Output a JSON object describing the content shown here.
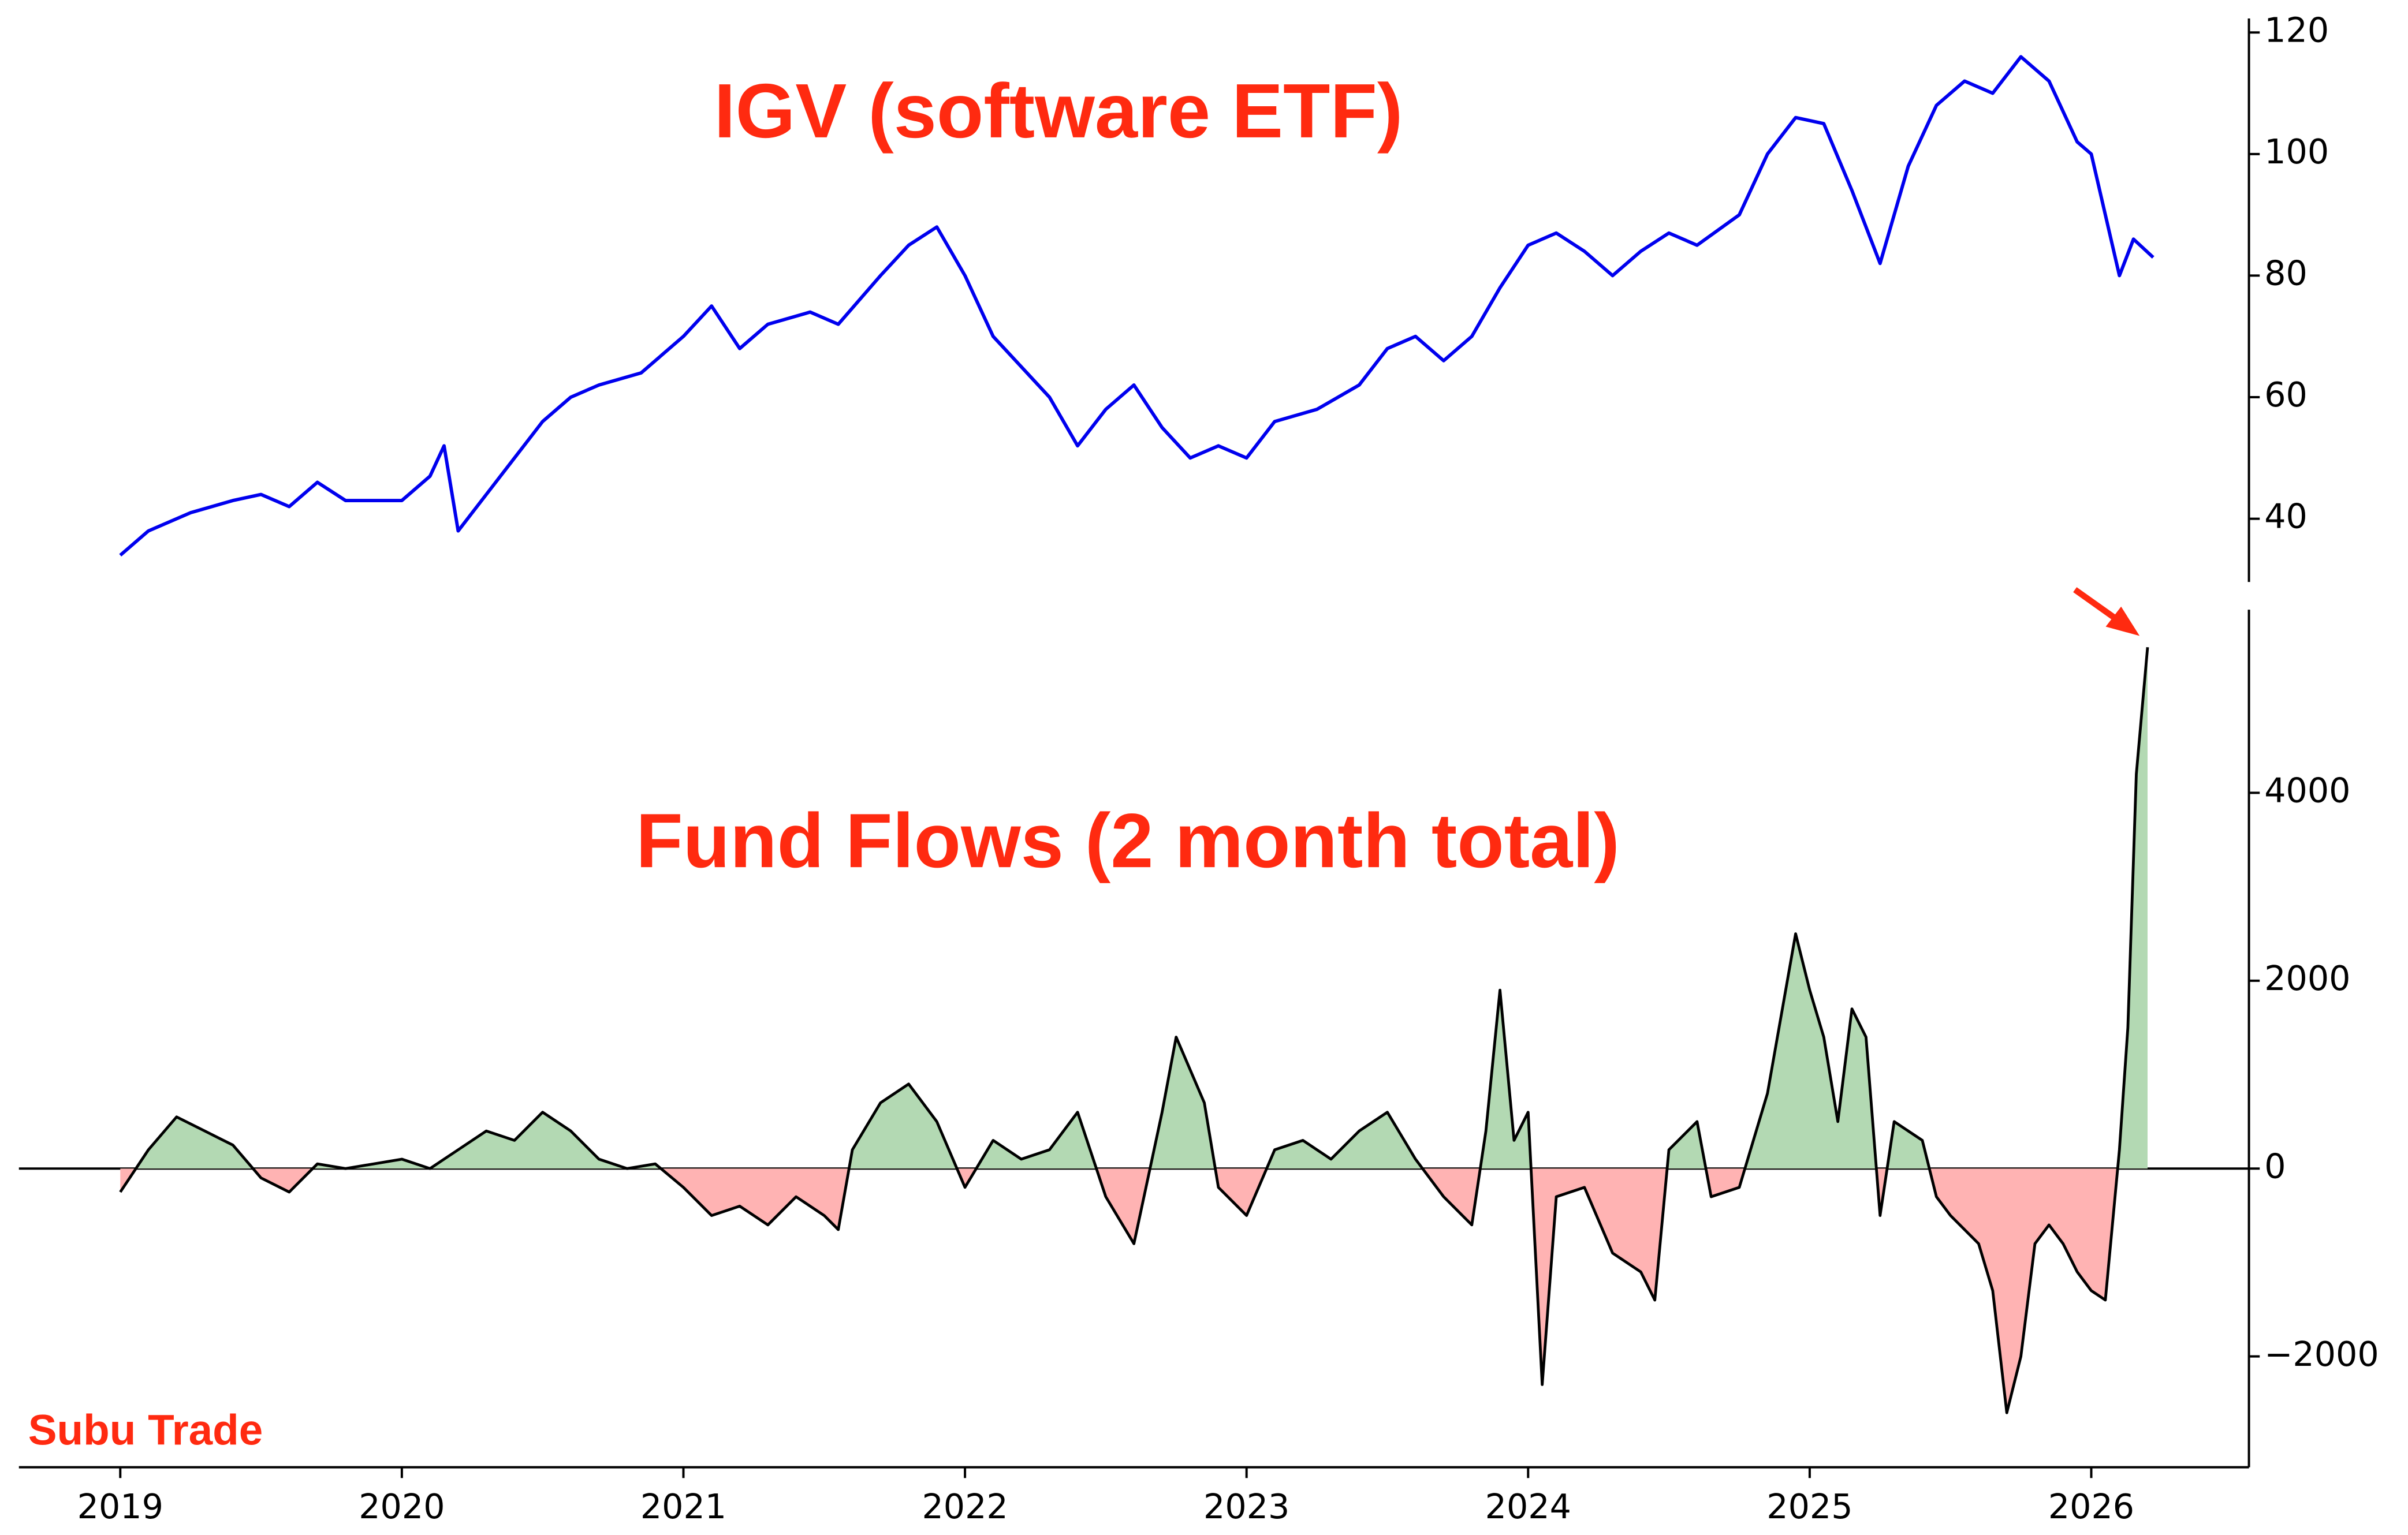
{
  "chart_data": [
    {
      "type": "line",
      "title": "IGV (software ETF)",
      "title_color": "#ff2a10",
      "xlim": [
        2018.64,
        2026.56
      ],
      "ylim": [
        29.6,
        122.3
      ],
      "yticks": [
        40,
        60,
        80,
        100,
        120
      ],
      "series": [
        {
          "color": "#0000ee",
          "x": [
            2019.0,
            2019.1,
            2019.25,
            2019.4,
            2019.5,
            2019.6,
            2019.7,
            2019.8,
            2020.0,
            2020.1,
            2020.15,
            2020.2,
            2020.3,
            2020.4,
            2020.5,
            2020.6,
            2020.7,
            2020.85,
            2021.0,
            2021.1,
            2021.2,
            2021.3,
            2021.45,
            2021.55,
            2021.7,
            2021.8,
            2021.9,
            2022.0,
            2022.1,
            2022.2,
            2022.3,
            2022.4,
            2022.5,
            2022.6,
            2022.7,
            2022.8,
            2022.9,
            2023.0,
            2023.1,
            2023.25,
            2023.4,
            2023.5,
            2023.6,
            2023.7,
            2023.8,
            2023.9,
            2024.0,
            2024.1,
            2024.2,
            2024.3,
            2024.4,
            2024.5,
            2024.6,
            2024.75,
            2024.85,
            2024.95,
            2025.05,
            2025.15,
            2025.25,
            2025.35,
            2025.45,
            2025.55,
            2025.65,
            2025.75,
            2025.85,
            2025.95,
            2026.0,
            2026.1,
            2026.15,
            2026.22
          ],
          "values": [
            34,
            38,
            41,
            43,
            44,
            42,
            46,
            43,
            43,
            47,
            52,
            38,
            44,
            50,
            56,
            60,
            62,
            64,
            70,
            75,
            68,
            72,
            74,
            72,
            80,
            85,
            88,
            80,
            70,
            65,
            60,
            52,
            58,
            62,
            55,
            50,
            52,
            50,
            56,
            58,
            62,
            68,
            70,
            66,
            70,
            78,
            85,
            87,
            84,
            80,
            84,
            87,
            85,
            90,
            100,
            106,
            105,
            94,
            82,
            98,
            108,
            112,
            110,
            116,
            112,
            102,
            100,
            80,
            86,
            83
          ]
        }
      ]
    },
    {
      "type": "area",
      "title": "Fund Flows (2 month total)",
      "title_color": "#ff2a10",
      "annotation": "Subu Trade",
      "xlim": [
        2018.64,
        2026.56
      ],
      "xticks": [
        2019,
        2020,
        2021,
        2022,
        2023,
        2024,
        2025,
        2026
      ],
      "ylim": [
        -3180,
        5950
      ],
      "yticks": [
        {
          "value": -2000,
          "label": "−2000"
        },
        0,
        2000,
        4000
      ],
      "positive_color": "#b3d9b3",
      "negative_color": "#ffb3b3",
      "series": [
        {
          "color": "#000000",
          "x": [
            2019.0,
            2019.1,
            2019.2,
            2019.3,
            2019.4,
            2019.5,
            2019.6,
            2019.7,
            2019.8,
            2020.0,
            2020.1,
            2020.2,
            2020.3,
            2020.4,
            2020.5,
            2020.6,
            2020.7,
            2020.8,
            2020.9,
            2021.0,
            2021.1,
            2021.2,
            2021.3,
            2021.4,
            2021.5,
            2021.55,
            2021.6,
            2021.7,
            2021.8,
            2021.9,
            2022.0,
            2022.1,
            2022.2,
            2022.3,
            2022.4,
            2022.5,
            2022.6,
            2022.7,
            2022.75,
            2022.85,
            2022.9,
            2023.0,
            2023.1,
            2023.2,
            2023.3,
            2023.4,
            2023.5,
            2023.6,
            2023.7,
            2023.8,
            2023.85,
            2023.9,
            2023.95,
            2024.0,
            2024.05,
            2024.1,
            2024.2,
            2024.3,
            2024.4,
            2024.45,
            2024.5,
            2024.6,
            2024.65,
            2024.75,
            2024.85,
            2024.95,
            2025.0,
            2025.05,
            2025.1,
            2025.15,
            2025.2,
            2025.25,
            2025.3,
            2025.4,
            2025.45,
            2025.5,
            2025.6,
            2025.65,
            2025.7,
            2025.75,
            2025.8,
            2025.85,
            2025.9,
            2025.95,
            2026.0,
            2026.05,
            2026.1,
            2026.13,
            2026.16,
            2026.2
          ],
          "values": [
            -250,
            200,
            550,
            400,
            250,
            -100,
            -250,
            50,
            0,
            100,
            0,
            200,
            400,
            300,
            600,
            400,
            100,
            0,
            50,
            -200,
            -500,
            -400,
            -600,
            -300,
            -500,
            -650,
            200,
            700,
            900,
            500,
            -200,
            300,
            100,
            200,
            600,
            -300,
            -800,
            600,
            1400,
            700,
            -200,
            -500,
            200,
            300,
            100,
            400,
            600,
            100,
            -300,
            -600,
            400,
            1900,
            300,
            600,
            -2300,
            -300,
            -200,
            -900,
            -1100,
            -1400,
            200,
            500,
            -300,
            -200,
            800,
            2500,
            1900,
            1400,
            500,
            1700,
            1400,
            -500,
            500,
            300,
            -300,
            -500,
            -800,
            -1300,
            -2600,
            -2000,
            -800,
            -600,
            -800,
            -1100,
            -1300,
            -1400,
            200,
            1500,
            4200,
            5550
          ]
        }
      ]
    }
  ]
}
